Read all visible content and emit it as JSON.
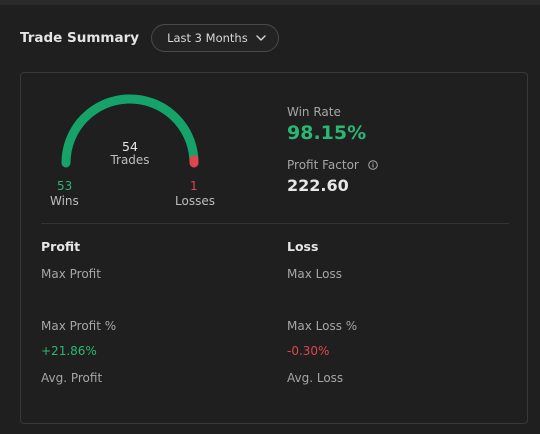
{
  "header": {
    "title": "Trade Summary",
    "range_label": "Last 3 Months"
  },
  "gauge": {
    "total_trades": "54",
    "trades_label": "Trades",
    "wins_count": "53",
    "wins_label": "Wins",
    "losses_count": "1",
    "losses_label": "Losses",
    "win_fraction": 0.9815,
    "colors": {
      "win": "#16a36a",
      "loss": "#e0454d",
      "track": "#1c4a37"
    }
  },
  "stats": {
    "win_rate_label": "Win Rate",
    "win_rate_value": "98.15%",
    "profit_factor_label": "Profit Factor",
    "profit_factor_value": "222.60"
  },
  "profit": {
    "title": "Profit",
    "max_profit_label": "Max Profit",
    "max_profit_pct_label": "Max Profit %",
    "max_profit_pct_value": "+21.86%",
    "avg_profit_label": "Avg. Profit"
  },
  "loss": {
    "title": "Loss",
    "max_loss_label": "Max Loss",
    "max_loss_pct_label": "Max Loss %",
    "max_loss_pct_value": "-0.30%",
    "avg_loss_label": "Avg. Loss"
  },
  "icons": {
    "range_chevron": "chevron-down-icon",
    "profit_factor_info": "info-icon"
  }
}
